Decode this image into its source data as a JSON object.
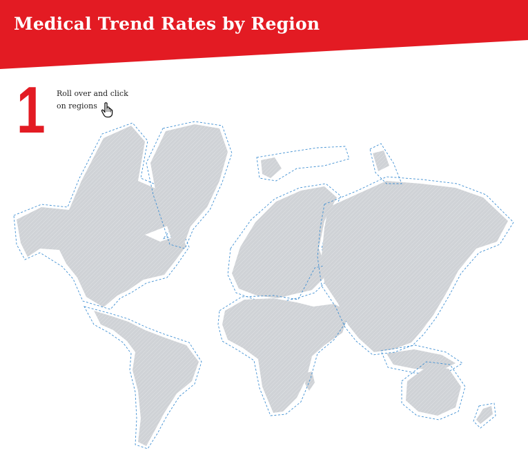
{
  "header": {
    "title": "Medical Trend Rates by Region",
    "background_color": "#e31b23"
  },
  "instructions": {
    "step_number": "1",
    "line1": "Roll over and click",
    "line2": "on regions",
    "icon": "pointer-hand-icon"
  },
  "map": {
    "land_color": "#cfd2d6",
    "border_color": "#3f8fd2",
    "regions": [
      "north-america",
      "greenland",
      "latin-america",
      "europe",
      "africa-middle-east",
      "asia-pacific",
      "australia-new-zealand"
    ]
  }
}
